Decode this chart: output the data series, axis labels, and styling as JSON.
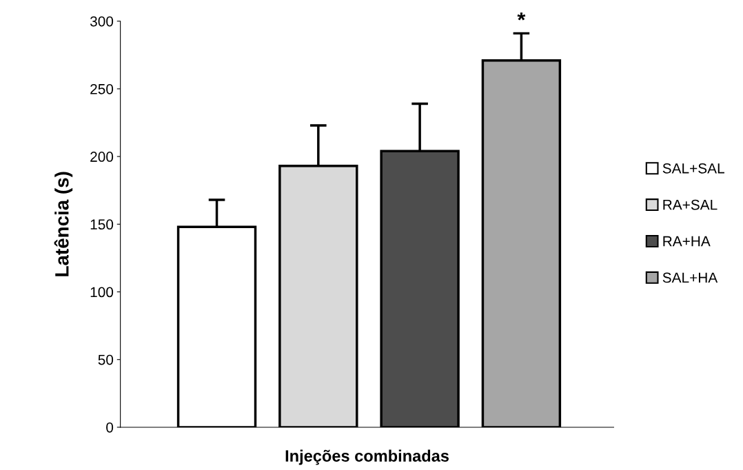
{
  "chart_data": {
    "type": "bar",
    "xlabel": "Injeções combinadas",
    "ylabel": "Latência (s)",
    "categories": [
      null,
      null,
      null,
      null
    ],
    "series": [
      {
        "name": "SAL+SAL",
        "color": "#ffffff",
        "values": [
          148,
          null,
          null,
          null
        ],
        "errors": [
          [
            148,
            168
          ],
          null,
          null,
          null
        ]
      },
      {
        "name": "RA+SAL",
        "color": "#d9d9d9",
        "values": [
          null,
          193,
          null,
          null
        ],
        "errors": [
          null,
          [
            193,
            223
          ],
          null,
          null
        ]
      },
      {
        "name": "RA+HA",
        "color": "#4d4d4d",
        "values": [
          null,
          null,
          204,
          null
        ],
        "errors": [
          null,
          null,
          [
            204,
            239
          ],
          null
        ]
      },
      {
        "name": "SAL+HA",
        "color": "#a6a6a6",
        "values": [
          null,
          null,
          null,
          271
        ],
        "errors": [
          null,
          null,
          null,
          [
            271,
            291
          ]
        ],
        "value_labels": [
          null,
          null,
          null,
          "*"
        ]
      }
    ],
    "ylim": [
      0,
      300
    ],
    "yticks": [
      0,
      50,
      100,
      150,
      200,
      250,
      300
    ],
    "grid": false,
    "legend": "right"
  }
}
